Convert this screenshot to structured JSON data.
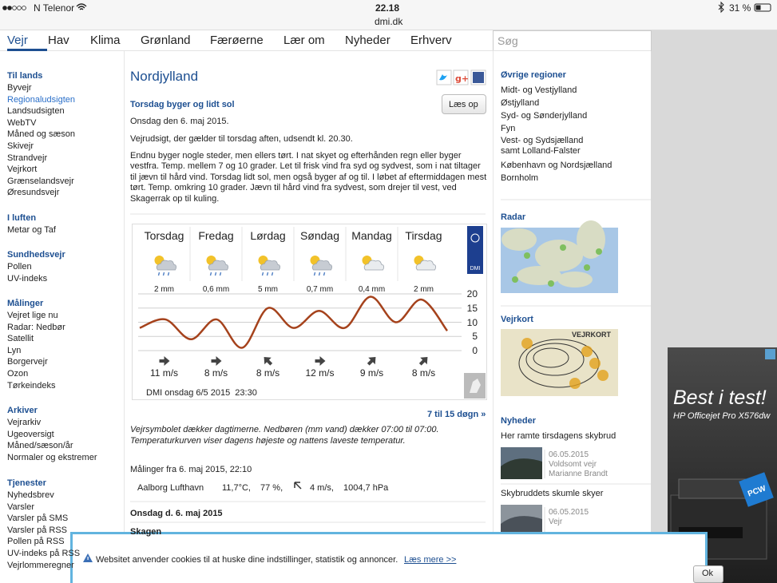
{
  "status_bar": {
    "carrier": "N Telenor",
    "time": "22.18",
    "url": "dmi.dk",
    "battery": "31 %"
  },
  "nav": {
    "items": [
      "Vejr",
      "Hav",
      "Klima",
      "Grønland",
      "Færøerne",
      "Lær om",
      "Nyheder",
      "Erhverv"
    ],
    "search_placeholder": "Søg"
  },
  "sidebar": {
    "groups": [
      {
        "title": "Til lands",
        "items": [
          "Byvejr",
          "Regionaludsigten",
          "Landsudsigten",
          "WebTV",
          "Måned og sæson",
          "Skivejr",
          "Strandvejr",
          "Vejrkort",
          "Grænselandsvejr",
          "Øresundsvejr"
        ]
      },
      {
        "title": "I luften",
        "items": [
          "Metar og Taf"
        ]
      },
      {
        "title": "Sundhedsvejr",
        "items": [
          "Pollen",
          "UV-indeks"
        ]
      },
      {
        "title": "Målinger",
        "items": [
          "Vejret lige nu",
          "Radar: Nedbør",
          "Satellit",
          "Lyn",
          "Borgervejr",
          "Ozon",
          "Tørkeindeks"
        ]
      },
      {
        "title": "Arkiver",
        "items": [
          "Vejrarkiv",
          "Ugeoversigt",
          "Måned/sæson/år",
          "Normaler og ekstremer"
        ]
      },
      {
        "title": "Tjenester",
        "items": [
          "Nyhedsbrev",
          "Varsler",
          "Varsler på SMS",
          "Varsler på RSS",
          "Pollen på RSS",
          "UV-indeks på RSS",
          "Vejrlommeregner"
        ]
      }
    ]
  },
  "main": {
    "title": "Nordjylland",
    "headline": "Torsdag byger og lidt sol",
    "read_button": "Læs op",
    "date": "Onsdag den 6. maj 2015.",
    "paragraphs": [
      "Vejrudsigt, der gælder til torsdag aften, udsendt kl. 20.30.",
      "Endnu byger nogle steder, men ellers tørt. I nat skyet og efterhånden regn eller byger vestfra. Temp. mellem 7 og 10 grader. Let til frisk vind fra syd og sydvest, som i nat tiltager til jævn til hård vind. Torsdag lidt sol, men også byger af og til. I løbet af eftermiddagen mest tørt. Temp. omkring 10 grader. Jævn til hård vind fra sydvest, som drejer til vest, ved Skagerrak op til kuling."
    ],
    "forecast": {
      "days": [
        {
          "name": "Torsdag",
          "precipitation": "2 mm",
          "wind": "11 m/s"
        },
        {
          "name": "Fredag",
          "precipitation": "0,6 mm",
          "wind": "8 m/s"
        },
        {
          "name": "Lørdag",
          "precipitation": "5 mm",
          "wind": "8 m/s"
        },
        {
          "name": "Søndag",
          "precipitation": "0,7 mm",
          "wind": "12 m/s"
        },
        {
          "name": "Mandag",
          "precipitation": "0,4 mm",
          "wind": "9 m/s"
        },
        {
          "name": "Tirsdag",
          "precipitation": "2 mm",
          "wind": "8 m/s"
        }
      ],
      "temperature": {
        "range": [
          0,
          20
        ],
        "ticks": [
          20,
          15,
          10,
          5,
          0
        ],
        "values": [
          8,
          11,
          4,
          11,
          1,
          15,
          8,
          14,
          8,
          19,
          10,
          18,
          7
        ],
        "color": "#a5421c"
      },
      "logo": "DMI",
      "footer": "DMI onsdag 6/5 2015  23:30"
    },
    "extended_link": "7 til 15 døgn »",
    "note": "Vejrsymbolet dækker dagtimerne. Nedbøren (mm vand) dækker 07:00 til 07:00. Temperaturkurven viser dagens højeste og nattens laveste temperatur.",
    "measurements": {
      "heading": "Målinger fra 6. maj 2015, 22:10",
      "station": "Aalborg Lufthavn",
      "temperature": "11,7°C,",
      "humidity": "77 %,",
      "wind": "4 m/s,",
      "pressure": "1004,7 hPa"
    },
    "day_heading": "Onsdag d. 6. maj 2015",
    "station_heading": "Skagen"
  },
  "right": {
    "regions": {
      "title": "Øvrige regioner",
      "items": [
        "Midt- og Vestjylland",
        "Østjylland",
        "Syd- og Sønderjylland",
        "Fyn",
        "Vest- og Sydsjælland samt Lolland-Falster",
        "København og Nordsjælland",
        "Bornholm"
      ]
    },
    "radar": {
      "title": "Radar"
    },
    "weather_map": {
      "title": "Vejrkort",
      "image_label": "VEJRKORT"
    },
    "news": {
      "title": "Nyheder",
      "items": [
        {
          "headline": "Her ramte tirsdagens skybrud",
          "date": "06.05.2015",
          "category": "Voldsomt vejr",
          "author": "Marianne Brandt"
        },
        {
          "headline": "Skybruddets skumle skyer",
          "date": "06.05.2015",
          "category": "Vejr"
        }
      ]
    }
  },
  "ad": {
    "title": "Best i test!",
    "product": "HP Officejet Pro X576dw",
    "badge": "PCW"
  },
  "cookie_banner": {
    "text": "Websitet anvender cookies til at huske dine indstillinger, statistik og annoncer.",
    "link": "Læs mere >>",
    "button": "Ok"
  }
}
